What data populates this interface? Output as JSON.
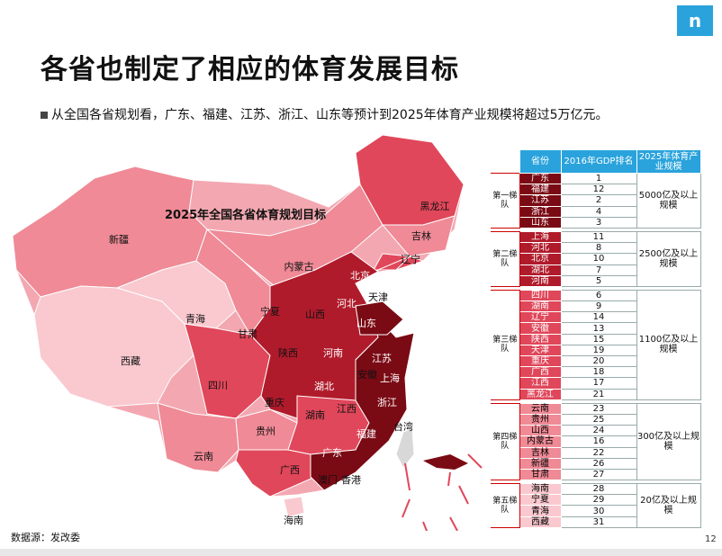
{
  "logo_text": "n",
  "title": "各省也制定了相应的体育发展目标",
  "subtitle": "从全国各省规划看，广东、福建、江苏、浙江、山东等预计到2025年体育产业规模将超过5万亿元。",
  "map_title": "2025年全国各省体育规划目标",
  "source": "数据源：发改委",
  "page_number": "12",
  "colors": {
    "header": "#2aa3dc",
    "tier1": "#7a0a14",
    "tier2": "#b01b2b",
    "tier3": "#e0475a",
    "tier4": "#ef8a96",
    "tier5": "#f9c9cf",
    "bar": "#e8e8e8"
  },
  "map_labels": [
    {
      "name": "新疆",
      "tier": 4
    },
    {
      "name": "西藏",
      "tier": 5
    },
    {
      "name": "青海",
      "tier": 5
    },
    {
      "name": "甘肃",
      "tier": 4
    },
    {
      "name": "内蒙古",
      "tier": 4
    },
    {
      "name": "宁夏",
      "tier": 5
    },
    {
      "name": "黑龙江",
      "tier": 3
    },
    {
      "name": "吉林",
      "tier": 4
    },
    {
      "name": "辽宁",
      "tier": 3
    },
    {
      "name": "北京",
      "tier": 2
    },
    {
      "name": "天津",
      "tier": 3
    },
    {
      "name": "河北",
      "tier": 2
    },
    {
      "name": "山西",
      "tier": 4
    },
    {
      "name": "陕西",
      "tier": 3
    },
    {
      "name": "四川",
      "tier": 3
    },
    {
      "name": "重庆",
      "tier": 3
    },
    {
      "name": "河南",
      "tier": 2
    },
    {
      "name": "山东",
      "tier": 1
    },
    {
      "name": "湖北",
      "tier": 2
    },
    {
      "name": "江苏",
      "tier": 1
    },
    {
      "name": "安徽",
      "tier": 3
    },
    {
      "name": "上海",
      "tier": 2
    },
    {
      "name": "浙江",
      "tier": 1
    },
    {
      "name": "湖南",
      "tier": 3
    },
    {
      "name": "江西",
      "tier": 3
    },
    {
      "name": "贵州",
      "tier": 4
    },
    {
      "name": "云南",
      "tier": 4
    },
    {
      "name": "广西",
      "tier": 3
    },
    {
      "name": "广东",
      "tier": 1
    },
    {
      "name": "福建",
      "tier": 1
    },
    {
      "name": "台湾",
      "tier": 0
    },
    {
      "name": "澳门",
      "tier": 0
    },
    {
      "name": "香港",
      "tier": 0
    },
    {
      "name": "海南",
      "tier": 5
    }
  ],
  "chart_data": {
    "type": "table",
    "headers": [
      "省份",
      "2016年GDP排名",
      "2025年体育产业规模"
    ],
    "tiers": [
      {
        "label": "第一梯队",
        "scale": "5000亿及以上规模",
        "rows": [
          [
            "广东",
            "1"
          ],
          [
            "福建",
            "12"
          ],
          [
            "江苏",
            "2"
          ],
          [
            "浙江",
            "4"
          ],
          [
            "山东",
            "3"
          ]
        ]
      },
      {
        "label": "第二梯队",
        "scale": "2500亿及以上规模",
        "rows": [
          [
            "上海",
            "11"
          ],
          [
            "河北",
            "8"
          ],
          [
            "北京",
            "10"
          ],
          [
            "湖北",
            "7"
          ],
          [
            "河南",
            "5"
          ]
        ]
      },
      {
        "label": "第三梯队",
        "scale": "1100亿及以上规模",
        "rows": [
          [
            "四川",
            "6"
          ],
          [
            "湖南",
            "9"
          ],
          [
            "辽宁",
            "14"
          ],
          [
            "安徽",
            "13"
          ],
          [
            "陕西",
            "15"
          ],
          [
            "天津",
            "19"
          ],
          [
            "重庆",
            "20"
          ],
          [
            "广西",
            "18"
          ],
          [
            "江西",
            "17"
          ],
          [
            "黑龙江",
            "21"
          ]
        ]
      },
      {
        "label": "第四梯队",
        "scale": "300亿及以上规模",
        "rows": [
          [
            "云南",
            "23"
          ],
          [
            "贵州",
            "25"
          ],
          [
            "山西",
            "24"
          ],
          [
            "内蒙古",
            "16"
          ],
          [
            "吉林",
            "22"
          ],
          [
            "新疆",
            "26"
          ],
          [
            "甘肃",
            "27"
          ]
        ]
      },
      {
        "label": "第五梯队",
        "scale": "20亿及以上规模",
        "rows": [
          [
            "海南",
            "28"
          ],
          [
            "宁夏",
            "29"
          ],
          [
            "青海",
            "30"
          ],
          [
            "西藏",
            "31"
          ]
        ]
      }
    ]
  }
}
